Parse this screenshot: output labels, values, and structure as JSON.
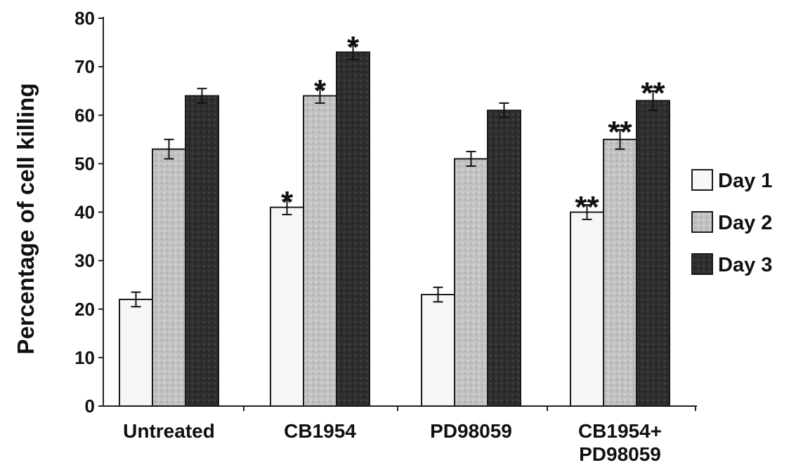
{
  "chart_data": {
    "type": "bar",
    "ylabel": "Percentage of cell killing",
    "xlabel": "",
    "ylim": [
      0,
      80
    ],
    "yticks": [
      0,
      10,
      20,
      30,
      40,
      50,
      60,
      70,
      80
    ],
    "categories": [
      "Untreated",
      "CB1954",
      "PD98059",
      "CB1954+\nPD98059"
    ],
    "series": [
      {
        "name": "Day 1",
        "values": [
          22,
          41,
          23,
          40
        ],
        "errors": [
          1.5,
          1.5,
          1.5,
          1.5
        ],
        "color": "#f6f6f6",
        "significance": [
          "",
          "*",
          "",
          "**"
        ]
      },
      {
        "name": "Day 2",
        "values": [
          53,
          64,
          51,
          55
        ],
        "errors": [
          2,
          1.5,
          1.5,
          2
        ],
        "color": "#c2c2c2",
        "significance": [
          "",
          "*",
          "",
          "**"
        ]
      },
      {
        "name": "Day 3",
        "values": [
          64,
          73,
          61,
          63
        ],
        "errors": [
          1.5,
          1.5,
          1.5,
          2
        ],
        "color": "#2e2e2e",
        "significance": [
          "",
          "*",
          "",
          "**"
        ]
      }
    ],
    "legend_position": "right",
    "grid": false
  }
}
